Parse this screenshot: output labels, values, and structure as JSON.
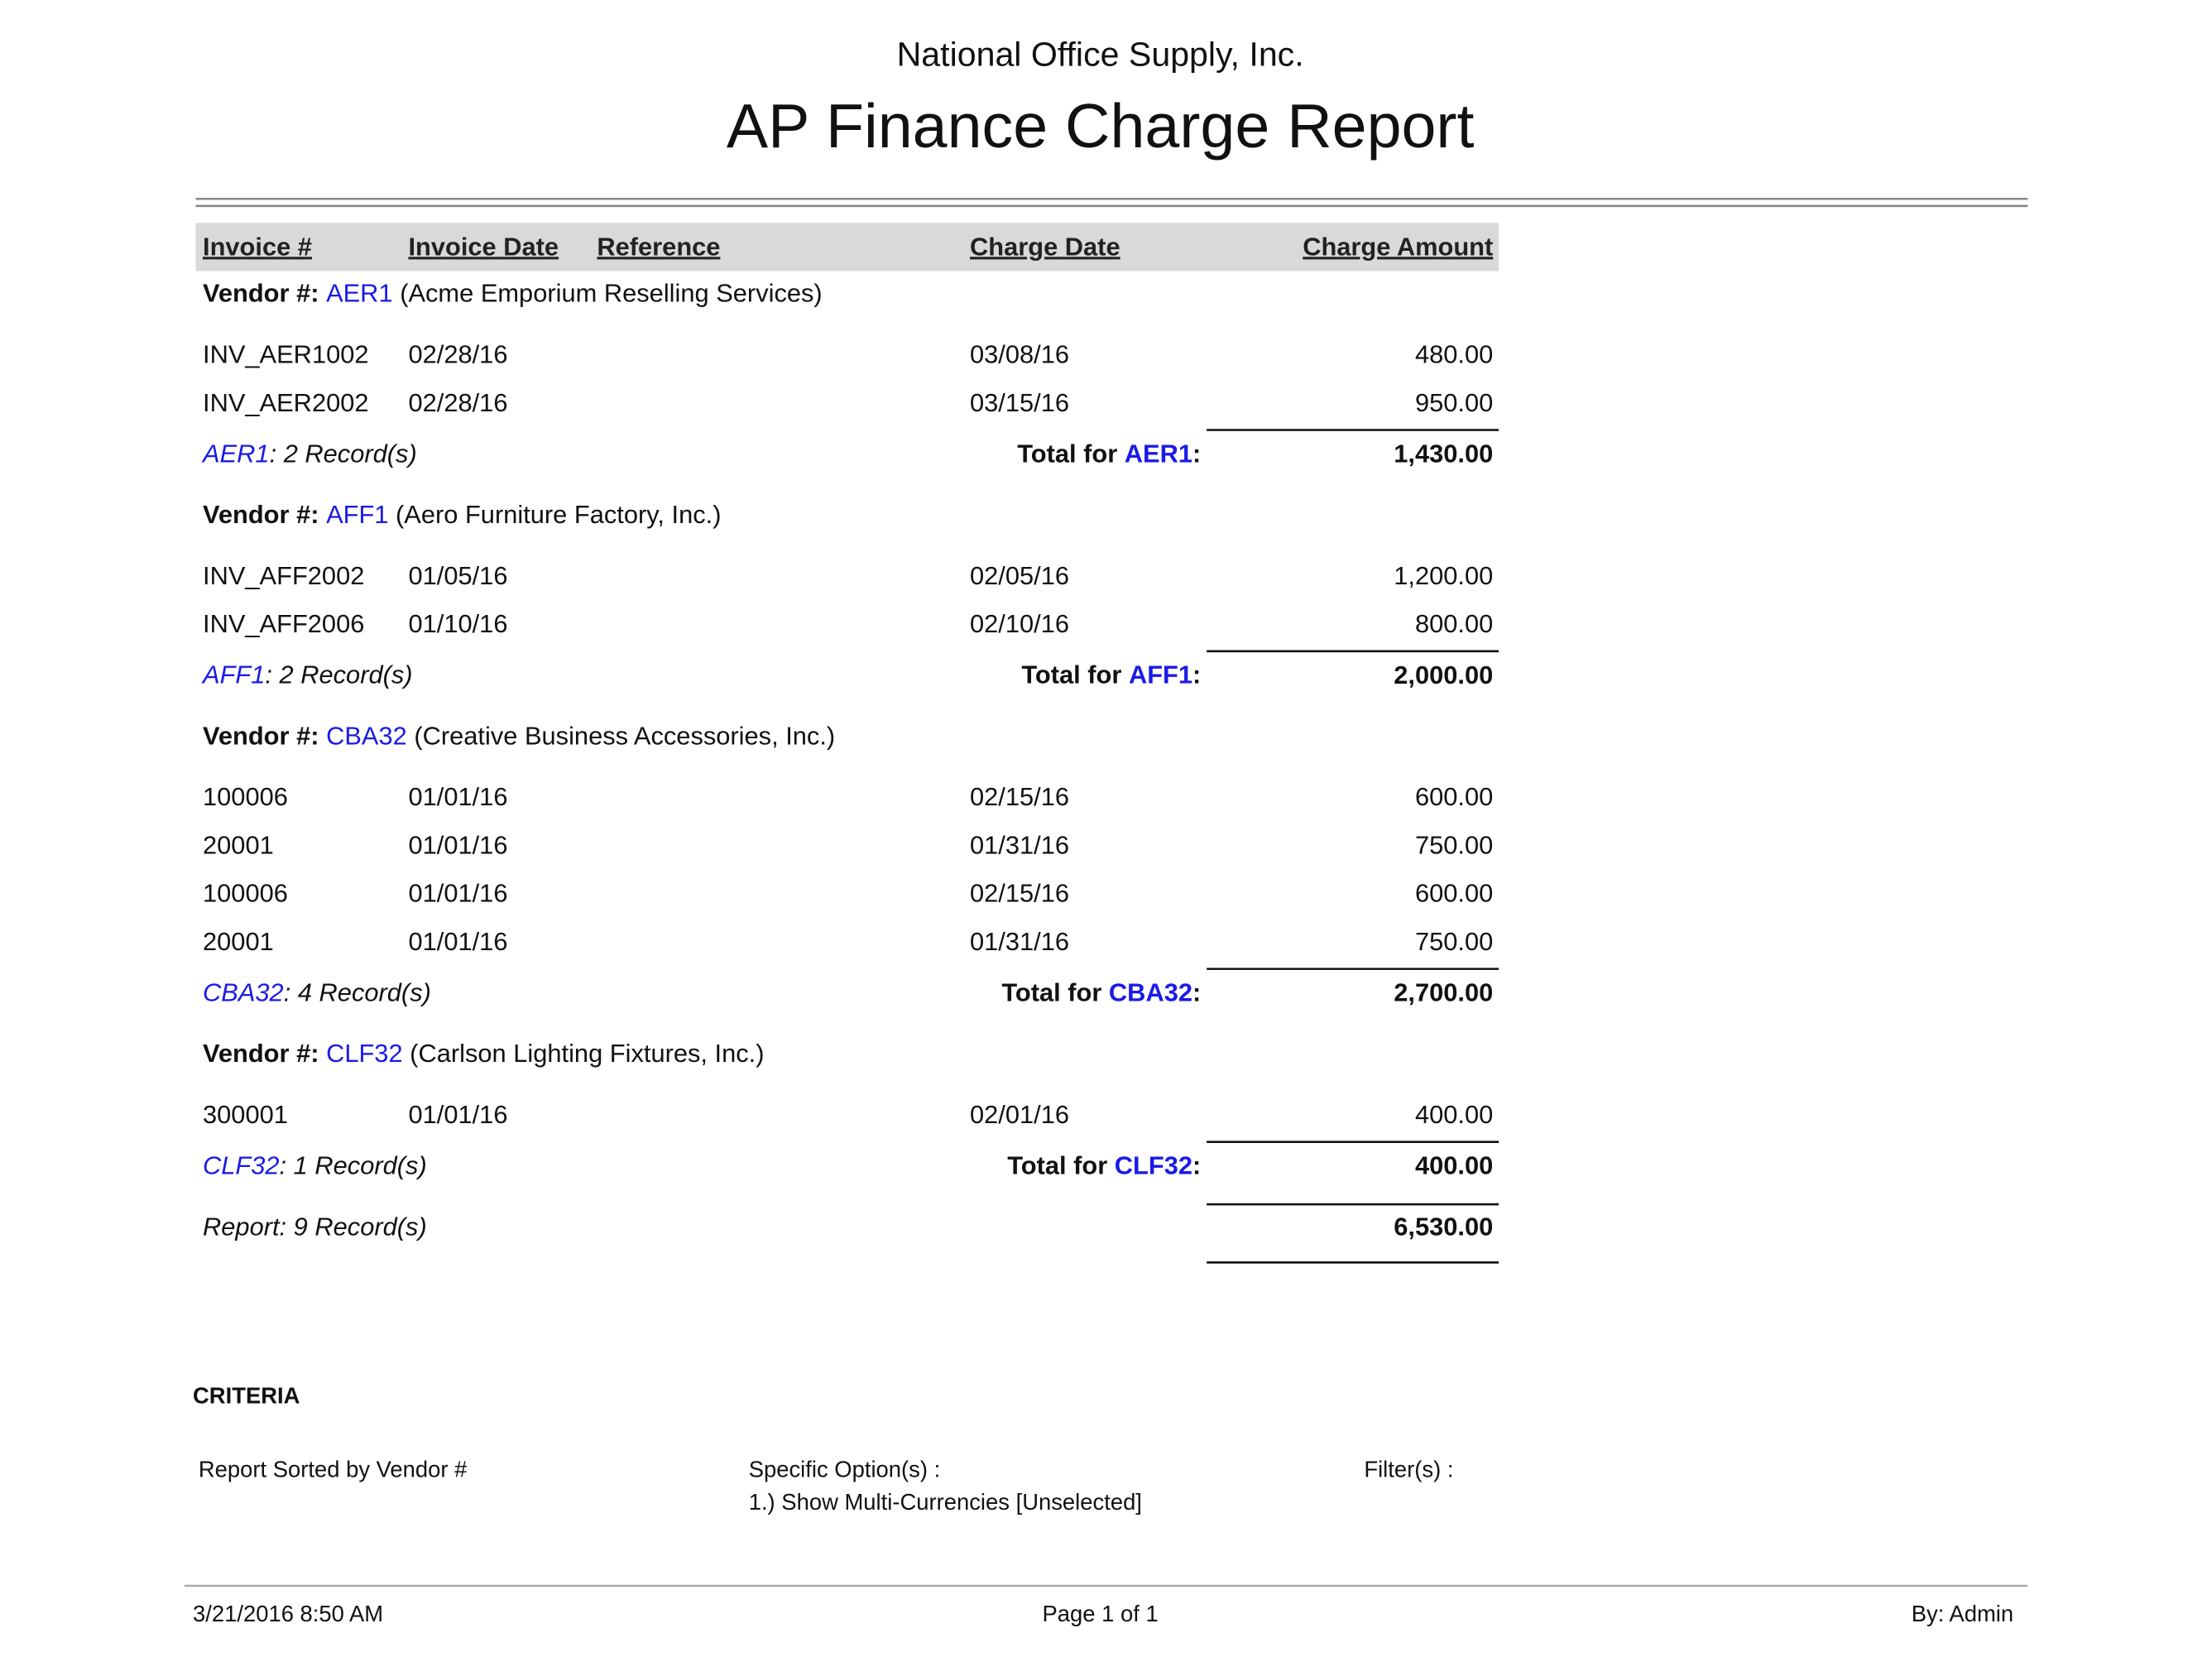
{
  "header": {
    "company": "National Office Supply, Inc.",
    "title": "AP Finance Charge Report"
  },
  "table": {
    "columns": [
      "Invoice #",
      "Invoice Date",
      "Reference",
      "Charge Date",
      "Charge Amount"
    ],
    "vendor_label": "Vendor #:",
    "total_prefix": "Total for",
    "total_suffix": ":",
    "vendors": [
      {
        "id": "AER1",
        "name": "(Acme Emporium Reselling Services)",
        "rows": [
          [
            "INV_AER1002",
            "02/28/16",
            "03/08/16",
            "480.00"
          ],
          [
            "INV_AER2002",
            "02/28/16",
            "03/15/16",
            "950.00"
          ]
        ],
        "record_text": ": 2 Record(s)",
        "total": "1,430.00"
      },
      {
        "id": "AFF1",
        "name": "(Aero Furniture Factory, Inc.)",
        "rows": [
          [
            "INV_AFF2002",
            "01/05/16",
            "02/05/16",
            "1,200.00"
          ],
          [
            "INV_AFF2006",
            "01/10/16",
            "02/10/16",
            "800.00"
          ]
        ],
        "record_text": ": 2 Record(s)",
        "total": "2,000.00"
      },
      {
        "id": "CBA32",
        "name": "(Creative Business Accessories, Inc.)",
        "rows": [
          [
            "100006",
            "01/01/16",
            "02/15/16",
            "600.00"
          ],
          [
            "20001",
            "01/01/16",
            "01/31/16",
            "750.00"
          ],
          [
            "100006",
            "01/01/16",
            "02/15/16",
            "600.00"
          ],
          [
            "20001",
            "01/01/16",
            "01/31/16",
            "750.00"
          ]
        ],
        "record_text": ": 4 Record(s)",
        "total": "2,700.00"
      },
      {
        "id": "CLF32",
        "name": "(Carlson Lighting Fixtures, Inc.)",
        "rows": [
          [
            "300001",
            "01/01/16",
            "02/01/16",
            "400.00"
          ]
        ],
        "record_text": ": 1 Record(s)",
        "total": "400.00"
      }
    ],
    "report_records": "Report: 9 Record(s)",
    "grand_total": "6,530.00"
  },
  "criteria": {
    "title": "CRITERIA",
    "sorted": "Report Sorted by Vendor #",
    "options_title": "Specific Option(s) :",
    "option_1": "1.) Show Multi-Currencies [Unselected]",
    "filters": "Filter(s) :"
  },
  "footer": {
    "datetime": "3/21/2016 8:50 AM",
    "page": "Page 1 of 1",
    "user": "By: Admin"
  }
}
